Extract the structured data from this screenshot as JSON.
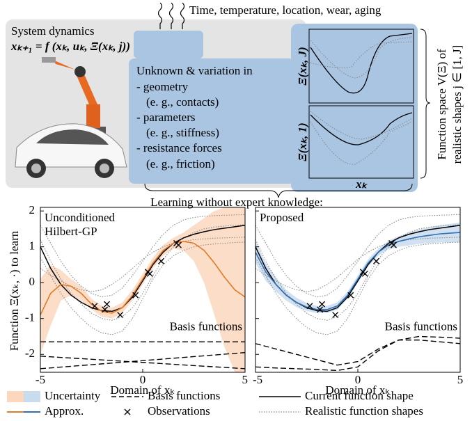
{
  "top": {
    "influences": "Time, temperature, location, wear, aging",
    "system_title": "System dynamics",
    "equation": "xₖ₊₁ = f (xₖ, uₖ, Ξ(xₖ, j))",
    "variation": {
      "heading": "Unknown & variation in",
      "items": [
        "- geometry",
        "(e. g., contacts)",
        "- parameters",
        "(e. g., stiffness)",
        "- resistance forces",
        "(e. g., friction)"
      ]
    },
    "inset": {
      "top_label": "Ξ(xₖ, J)",
      "bottom_label": "Ξ(xₖ, 1)",
      "x_label": "xₖ"
    },
    "function_space": [
      "Function space V(Ξ) of",
      "realistic shapes j ∈ [1, J]"
    ],
    "learning": "Learning without expert knowledge:"
  },
  "plots": {
    "y_label": "Function Ξ(xₖ, ·) to learn",
    "x_label": "Domain of xₖ",
    "basis_label": "Basis functions",
    "xlim": [
      -5,
      5
    ],
    "ylim": [
      -2.5,
      2.1
    ],
    "xticks": [
      -5,
      0,
      5
    ],
    "yticks": [
      -2,
      -1,
      0,
      1,
      2
    ],
    "x": [
      -5,
      -4.5,
      -4,
      -3.5,
      -3,
      -2.5,
      -2,
      -1.5,
      -1,
      -0.5,
      0,
      0.5,
      1,
      1.5,
      2,
      2.5,
      3,
      3.5,
      4,
      4.5,
      5
    ],
    "current": {
      "color": "#000000",
      "values": [
        1.0,
        0.4,
        -0.05,
        -0.35,
        -0.55,
        -0.7,
        -0.78,
        -0.8,
        -0.7,
        -0.4,
        0.05,
        0.5,
        0.85,
        1.1,
        1.25,
        1.35,
        1.42,
        1.48,
        1.52,
        1.56,
        1.6
      ]
    },
    "realistic": {
      "color": "#8a8a8a",
      "series": [
        [
          1.6,
          1.1,
          0.6,
          0.2,
          -0.1,
          -0.3,
          -0.4,
          -0.35,
          -0.15,
          0.2,
          0.6,
          1.0,
          1.35,
          1.6,
          1.75,
          1.82,
          1.85,
          1.87,
          1.88,
          1.89,
          1.9
        ],
        [
          0.7,
          0.2,
          -0.3,
          -0.7,
          -1.0,
          -1.25,
          -1.4,
          -1.45,
          -1.35,
          -1.0,
          -0.45,
          0.1,
          0.5,
          0.75,
          0.9,
          1.0,
          1.05,
          1.08,
          1.1,
          1.12,
          1.13
        ],
        [
          1.2,
          0.6,
          0.1,
          -0.3,
          -0.6,
          -0.85,
          -1.0,
          -1.05,
          -0.95,
          -0.7,
          -0.3,
          0.2,
          0.65,
          1.0,
          1.25,
          1.4,
          1.5,
          1.55,
          1.58,
          1.6,
          1.62
        ],
        [
          0.4,
          0.2,
          0.05,
          -0.1,
          -0.2,
          -0.25,
          -0.2,
          -0.05,
          0.15,
          0.4,
          0.65,
          0.85,
          1.0,
          1.1,
          1.15,
          1.2,
          1.22,
          1.24,
          1.25,
          1.26,
          1.27
        ]
      ]
    },
    "observations": {
      "x": [
        -2.35,
        -1.85,
        -1.75,
        -1.1,
        -0.35,
        0.25,
        0.35,
        0.9,
        1.65,
        1.75
      ],
      "y": [
        -0.65,
        -0.75,
        -0.6,
        -0.9,
        -0.35,
        0.3,
        0.25,
        0.6,
        1.1,
        1.05
      ]
    }
  },
  "panels": [
    {
      "title": [
        "Unconditioned",
        "Hilbert-GP"
      ],
      "color": "#e07b2a",
      "band_color": "#fbd7bd",
      "approx": [
        -0.9,
        -0.3,
        -0.05,
        -0.1,
        -0.3,
        -0.6,
        -0.8,
        -0.85,
        -0.7,
        -0.35,
        0.1,
        0.55,
        0.9,
        1.1,
        1.15,
        1.1,
        0.9,
        0.55,
        0.15,
        -0.2,
        -0.4
      ],
      "upper": [
        0.1,
        0.5,
        0.35,
        0.1,
        -0.1,
        -0.45,
        -0.65,
        -0.7,
        -0.55,
        -0.2,
        0.25,
        0.7,
        1.05,
        1.25,
        1.4,
        1.6,
        1.8,
        2.0,
        2.1,
        2.1,
        2.1
      ],
      "lower": [
        -2.0,
        -1.2,
        -0.5,
        -0.35,
        -0.5,
        -0.75,
        -0.95,
        -1.0,
        -0.85,
        -0.5,
        -0.05,
        0.4,
        0.75,
        0.95,
        0.9,
        0.6,
        0.0,
        -0.9,
        -1.8,
        -2.5,
        -2.5
      ],
      "basis": {
        "x": [
          -5,
          5
        ],
        "series": [
          [
            -1.65,
            -1.65
          ],
          [
            -2.4,
            -1.95
          ],
          [
            -2.05,
            -2.4
          ]
        ]
      }
    },
    {
      "title": [
        "Proposed"
      ],
      "color": "#2f6fb3",
      "band_color": "#c9dcee",
      "approx": [
        0.85,
        0.3,
        -0.05,
        -0.35,
        -0.55,
        -0.68,
        -0.75,
        -0.75,
        -0.65,
        -0.35,
        0.1,
        0.55,
        0.85,
        1.05,
        1.15,
        1.22,
        1.28,
        1.32,
        1.36,
        1.38,
        1.4
      ],
      "upper": [
        1.15,
        0.55,
        0.15,
        -0.2,
        -0.42,
        -0.57,
        -0.65,
        -0.65,
        -0.55,
        -0.25,
        0.2,
        0.65,
        0.95,
        1.17,
        1.3,
        1.4,
        1.48,
        1.54,
        1.6,
        1.64,
        1.68
      ],
      "lower": [
        0.55,
        0.05,
        -0.25,
        -0.5,
        -0.68,
        -0.79,
        -0.85,
        -0.85,
        -0.75,
        -0.45,
        0.0,
        0.45,
        0.75,
        0.93,
        1.0,
        1.04,
        1.08,
        1.1,
        1.12,
        1.12,
        1.12
      ],
      "basis": {
        "x": [
          -5,
          -4,
          -3,
          -2,
          -1,
          0,
          1,
          2,
          3,
          4,
          5
        ],
        "series": [
          [
            -1.7,
            -1.85,
            -2.0,
            -2.15,
            -2.3,
            -2.2,
            -1.85,
            -1.6,
            -1.6,
            -1.65,
            -1.7
          ],
          [
            -2.35,
            -2.38,
            -2.4,
            -2.42,
            -2.45,
            -2.35,
            -1.9,
            -1.6,
            -1.5,
            -1.52,
            -1.55
          ]
        ]
      }
    }
  ],
  "legend": {
    "uncertainty": "Uncertainty",
    "basis": "Basis functions",
    "current": "Current function shape",
    "approx": "Approx.",
    "observations": "Observations",
    "realistic": "Realistic function shapes"
  }
}
